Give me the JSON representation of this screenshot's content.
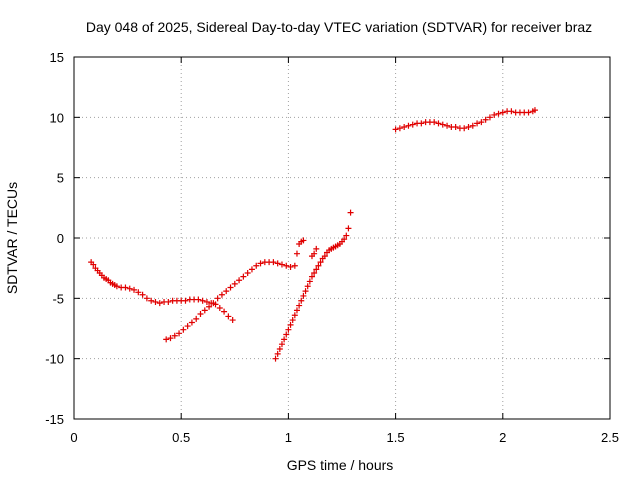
{
  "chart_data": {
    "type": "scatter",
    "title": "Day 048 of 2025, Sidereal Day-to-day VTEC variation (SDTVAR) for receiver braz",
    "xlabel": "GPS time / hours",
    "ylabel": "SDTVAR / TECUs",
    "xlim": [
      0,
      2.5
    ],
    "ylim": [
      -15,
      15
    ],
    "xticks": [
      0,
      0.5,
      1,
      1.5,
      2,
      2.5
    ],
    "xtick_labels": [
      "0",
      "0.5",
      "1",
      "1.5",
      "2",
      "2.5"
    ],
    "yticks": [
      -15,
      -10,
      -5,
      0,
      5,
      10,
      15
    ],
    "ytick_labels": [
      "-15",
      "-10",
      "-5",
      "0",
      "5",
      "10",
      "15"
    ],
    "grid": true,
    "marker": "+",
    "color": "#e00000",
    "series": [
      {
        "values": [
          [
            0.08,
            -2.0
          ],
          [
            0.09,
            -2.2
          ],
          [
            0.1,
            -2.5
          ],
          [
            0.11,
            -2.7
          ],
          [
            0.12,
            -2.9
          ],
          [
            0.13,
            -3.1
          ],
          [
            0.14,
            -3.3
          ],
          [
            0.15,
            -3.4
          ],
          [
            0.16,
            -3.5
          ],
          [
            0.17,
            -3.7
          ],
          [
            0.18,
            -3.8
          ],
          [
            0.19,
            -3.9
          ],
          [
            0.2,
            -4.0
          ],
          [
            0.22,
            -4.1
          ],
          [
            0.24,
            -4.1
          ],
          [
            0.26,
            -4.2
          ],
          [
            0.28,
            -4.3
          ],
          [
            0.3,
            -4.5
          ],
          [
            0.32,
            -4.7
          ],
          [
            0.34,
            -5.0
          ],
          [
            0.36,
            -5.2
          ],
          [
            0.38,
            -5.3
          ],
          [
            0.4,
            -5.4
          ],
          [
            0.42,
            -5.3
          ],
          [
            0.44,
            -5.3
          ],
          [
            0.46,
            -5.2
          ],
          [
            0.48,
            -5.2
          ],
          [
            0.5,
            -5.2
          ],
          [
            0.52,
            -5.2
          ],
          [
            0.54,
            -5.1
          ],
          [
            0.56,
            -5.1
          ],
          [
            0.58,
            -5.1
          ],
          [
            0.6,
            -5.2
          ],
          [
            0.62,
            -5.3
          ],
          [
            0.64,
            -5.4
          ],
          [
            0.66,
            -5.5
          ],
          [
            0.68,
            -5.8
          ],
          [
            0.7,
            -6.1
          ],
          [
            0.72,
            -6.5
          ],
          [
            0.74,
            -6.8
          ]
        ]
      },
      {
        "values": [
          [
            0.43,
            -8.4
          ],
          [
            0.45,
            -8.3
          ],
          [
            0.47,
            -8.1
          ],
          [
            0.49,
            -7.9
          ],
          [
            0.51,
            -7.6
          ],
          [
            0.53,
            -7.3
          ],
          [
            0.55,
            -7.0
          ],
          [
            0.57,
            -6.7
          ],
          [
            0.59,
            -6.3
          ],
          [
            0.61,
            -6.0
          ],
          [
            0.63,
            -5.7
          ],
          [
            0.65,
            -5.4
          ],
          [
            0.67,
            -5.0
          ],
          [
            0.69,
            -4.7
          ],
          [
            0.71,
            -4.4
          ],
          [
            0.73,
            -4.1
          ],
          [
            0.75,
            -3.8
          ],
          [
            0.77,
            -3.5
          ],
          [
            0.79,
            -3.2
          ],
          [
            0.81,
            -2.9
          ],
          [
            0.83,
            -2.6
          ],
          [
            0.85,
            -2.3
          ],
          [
            0.87,
            -2.1
          ],
          [
            0.89,
            -2.0
          ],
          [
            0.91,
            -2.0
          ],
          [
            0.93,
            -2.0
          ],
          [
            0.95,
            -2.1
          ],
          [
            0.97,
            -2.2
          ],
          [
            0.99,
            -2.3
          ],
          [
            1.01,
            -2.4
          ],
          [
            1.03,
            -2.3
          ],
          [
            1.04,
            -1.3
          ],
          [
            1.05,
            -0.5
          ],
          [
            1.06,
            -0.3
          ],
          [
            1.07,
            -0.2
          ]
        ]
      },
      {
        "values": [
          [
            0.94,
            -10.0
          ],
          [
            0.95,
            -9.6
          ],
          [
            0.96,
            -9.2
          ],
          [
            0.97,
            -8.8
          ],
          [
            0.98,
            -8.4
          ],
          [
            0.99,
            -8.0
          ],
          [
            1.0,
            -7.6
          ],
          [
            1.01,
            -7.2
          ],
          [
            1.02,
            -6.8
          ],
          [
            1.03,
            -6.4
          ],
          [
            1.04,
            -6.0
          ],
          [
            1.05,
            -5.6
          ],
          [
            1.06,
            -5.2
          ],
          [
            1.07,
            -4.8
          ],
          [
            1.08,
            -4.4
          ],
          [
            1.09,
            -4.0
          ],
          [
            1.1,
            -3.6
          ],
          [
            1.11,
            -3.2
          ],
          [
            1.12,
            -2.9
          ],
          [
            1.13,
            -2.6
          ],
          [
            1.14,
            -2.3
          ],
          [
            1.15,
            -2.0
          ],
          [
            1.16,
            -1.7
          ],
          [
            1.17,
            -1.5
          ],
          [
            1.18,
            -1.2
          ],
          [
            1.19,
            -1.0
          ],
          [
            1.2,
            -0.9
          ],
          [
            1.21,
            -0.8
          ],
          [
            1.22,
            -0.7
          ],
          [
            1.23,
            -0.6
          ],
          [
            1.24,
            -0.5
          ],
          [
            1.25,
            -0.3
          ],
          [
            1.26,
            -0.1
          ],
          [
            1.27,
            0.2
          ],
          [
            1.28,
            0.8
          ],
          [
            1.29,
            2.1
          ],
          [
            1.11,
            -1.5
          ],
          [
            1.12,
            -1.3
          ],
          [
            1.13,
            -0.9
          ]
        ]
      },
      {
        "values": [
          [
            1.5,
            9.0
          ],
          [
            1.52,
            9.1
          ],
          [
            1.54,
            9.2
          ],
          [
            1.56,
            9.3
          ],
          [
            1.58,
            9.4
          ],
          [
            1.6,
            9.5
          ],
          [
            1.62,
            9.5
          ],
          [
            1.64,
            9.6
          ],
          [
            1.66,
            9.6
          ],
          [
            1.68,
            9.6
          ],
          [
            1.7,
            9.5
          ],
          [
            1.72,
            9.4
          ],
          [
            1.74,
            9.3
          ],
          [
            1.76,
            9.2
          ],
          [
            1.78,
            9.2
          ],
          [
            1.8,
            9.1
          ],
          [
            1.82,
            9.1
          ],
          [
            1.84,
            9.2
          ],
          [
            1.86,
            9.3
          ],
          [
            1.88,
            9.5
          ],
          [
            1.9,
            9.6
          ],
          [
            1.92,
            9.8
          ],
          [
            1.94,
            10.0
          ],
          [
            1.96,
            10.2
          ],
          [
            1.98,
            10.3
          ],
          [
            2.0,
            10.4
          ],
          [
            2.02,
            10.5
          ],
          [
            2.04,
            10.5
          ],
          [
            2.06,
            10.4
          ],
          [
            2.08,
            10.4
          ],
          [
            2.1,
            10.4
          ],
          [
            2.12,
            10.4
          ],
          [
            2.14,
            10.5
          ],
          [
            2.15,
            10.6
          ]
        ]
      }
    ]
  }
}
